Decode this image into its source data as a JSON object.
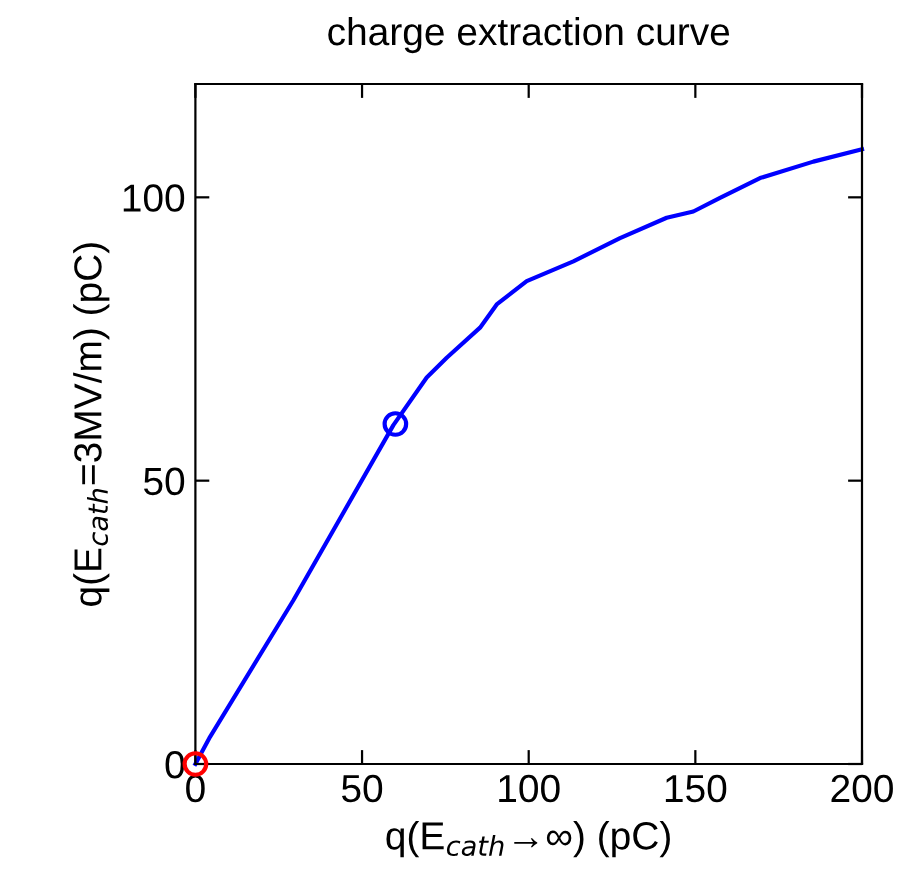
{
  "chart_data": {
    "type": "line",
    "title": "charge extraction curve",
    "xlabel": "q(E$_{cath}$→∞) (pC)",
    "ylabel": "q(E$_{cath}$=3MV/m) (pC)",
    "xlim": [
      0,
      200
    ],
    "ylim": [
      0,
      120
    ],
    "xticks": [
      0,
      50,
      100,
      150,
      200
    ],
    "yticks": [
      0,
      50,
      100
    ],
    "grid": false,
    "legend": false,
    "series": [
      {
        "color": "#0000ff",
        "marker": "none",
        "line_style": "solid",
        "x": [
          0,
          4.4,
          29.4,
          59.4,
          69.4,
          75.4,
          85.4,
          90.4,
          99.4,
          113.4,
          127.4,
          141.4,
          149.4,
          157.4,
          169.4,
          185.4,
          200
        ],
        "values": [
          0,
          4.8,
          28.9,
          59.8,
          68.2,
          71.7,
          77.0,
          81.1,
          85.2,
          88.7,
          92.8,
          96.4,
          97.5,
          99.9,
          103.4,
          106.3,
          108.5
        ]
      },
      {
        "type": "scatter",
        "color": "#0000ff",
        "marker": "circle",
        "x": [
          60
        ],
        "values": [
          60
        ]
      },
      {
        "type": "scatter",
        "color": "#ff0000",
        "marker": "circle",
        "x": [
          0
        ],
        "values": [
          0
        ]
      }
    ]
  }
}
